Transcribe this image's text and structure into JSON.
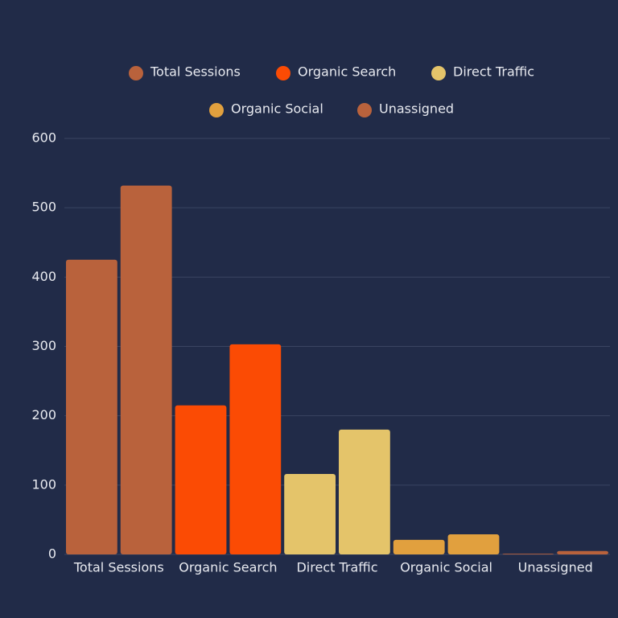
{
  "chart_data": {
    "type": "bar",
    "categories": [
      "Total Sessions",
      "Organic Search",
      "Direct Traffic",
      "Organic Social",
      "Unassigned"
    ],
    "colors": [
      "#b9623c",
      "#fb4b04",
      "#e4c46a",
      "#e1a03e",
      "#b9623c"
    ],
    "series": [
      {
        "values": [
          425,
          215,
          116,
          21,
          1
        ]
      },
      {
        "values": [
          532,
          303,
          180,
          29,
          5
        ]
      }
    ],
    "ylim": [
      0,
      600
    ],
    "yticks": [
      0,
      100,
      200,
      300,
      400,
      500,
      600
    ],
    "grid": true
  }
}
